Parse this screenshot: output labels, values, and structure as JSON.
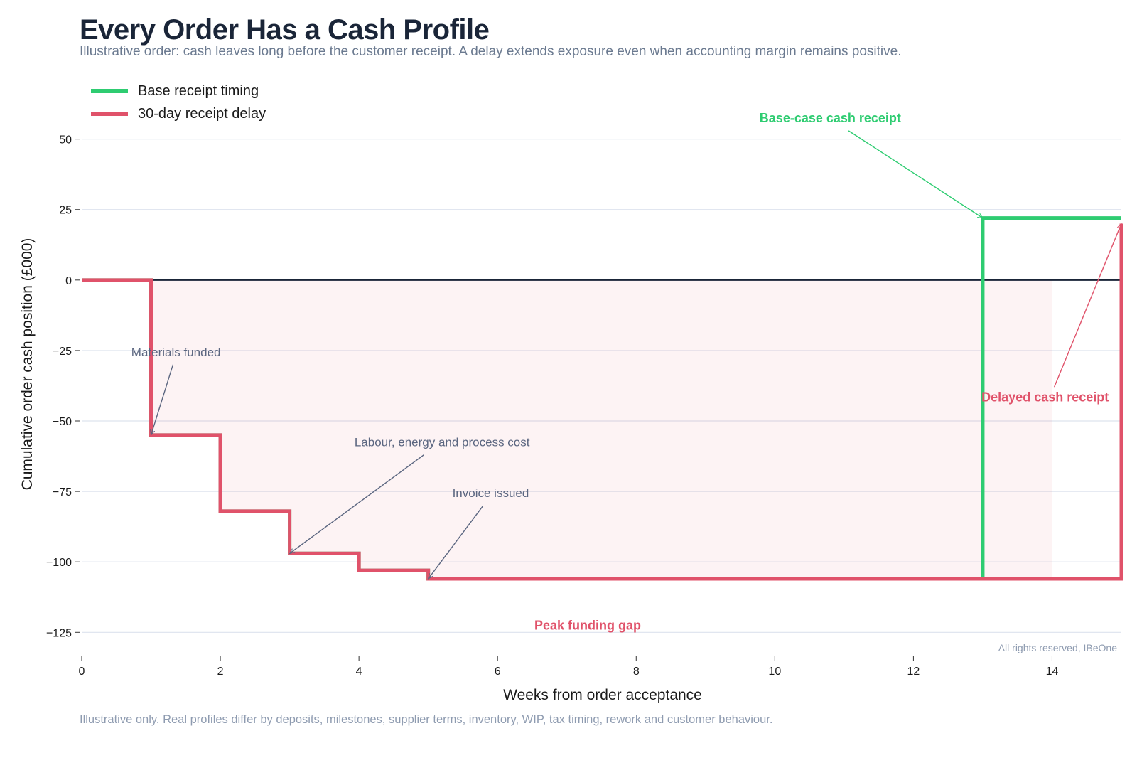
{
  "header": {
    "title": "Every Order Has a Cash Profile",
    "subtitle": "Illustrative order: cash leaves long before the customer receipt. A delay extends exposure even when accounting margin remains positive."
  },
  "footer": {
    "note": "Illustrative only. Real profiles differ by deposits, milestones, supplier terms, inventory, WIP, tax timing, rework and customer behaviour.",
    "copyright": "All rights reserved, IBeOne"
  },
  "chart_data": {
    "type": "line",
    "title": "Every Order Has a Cash Profile",
    "xlabel": "Weeks from order acceptance",
    "ylabel": "Cumulative order cash position (£000)",
    "xlim": [
      0,
      15
    ],
    "ylim": [
      -133,
      60
    ],
    "xticks": [
      0,
      2,
      4,
      6,
      8,
      10,
      12,
      14
    ],
    "yticks": [
      50,
      25,
      0,
      -25,
      -50,
      -75,
      -100,
      -125
    ],
    "ytick_labels": [
      "50",
      "25",
      "0",
      "−25",
      "−50",
      "−75",
      "−100",
      "−125"
    ],
    "grid": "horizontal",
    "legend_position": "top-left",
    "series": [
      {
        "name": "Base receipt timing",
        "color": "#2ecc71",
        "step": "post",
        "x": [
          0,
          1,
          2,
          3,
          4,
          5,
          13,
          15
        ],
        "y": [
          0,
          -55,
          -82,
          -97,
          -103,
          -106,
          22,
          22
        ]
      },
      {
        "name": "30-day receipt delay",
        "color": "#e0526a",
        "step": "post",
        "x": [
          0,
          1,
          2,
          3,
          4,
          5,
          13,
          15
        ],
        "y": [
          0,
          -55,
          -82,
          -97,
          -103,
          -106,
          -106,
          20
        ]
      }
    ],
    "shaded_exposure": {
      "x": [
        1,
        14
      ],
      "color": "#e0526a"
    },
    "annotations": [
      {
        "text": "Materials funded",
        "x": 1,
        "y": -55,
        "text_x": 1.36,
        "text_y": -27,
        "color": "#5b6680",
        "bold": false
      },
      {
        "text": "Labour, energy and process cost",
        "x": 3,
        "y": -97,
        "text_x": 5.2,
        "text_y": -59,
        "color": "#5b6680",
        "bold": false
      },
      {
        "text": "Invoice issued",
        "x": 5,
        "y": -106,
        "text_x": 5.9,
        "text_y": -77,
        "color": "#5b6680",
        "bold": false
      },
      {
        "text": "Base-case cash receipt",
        "x": 13,
        "y": 22,
        "text_x": 10.8,
        "text_y": 56,
        "color": "#2ecc71",
        "bold": true
      },
      {
        "text": "Delayed cash receipt",
        "x": 15,
        "y": 20,
        "text_x": 13.9,
        "text_y": -43,
        "color": "#e0526a",
        "bold": true
      },
      {
        "text": "Peak funding gap",
        "x": 7.3,
        "y": -124,
        "color": "#e0526a",
        "bold": true
      }
    ]
  }
}
